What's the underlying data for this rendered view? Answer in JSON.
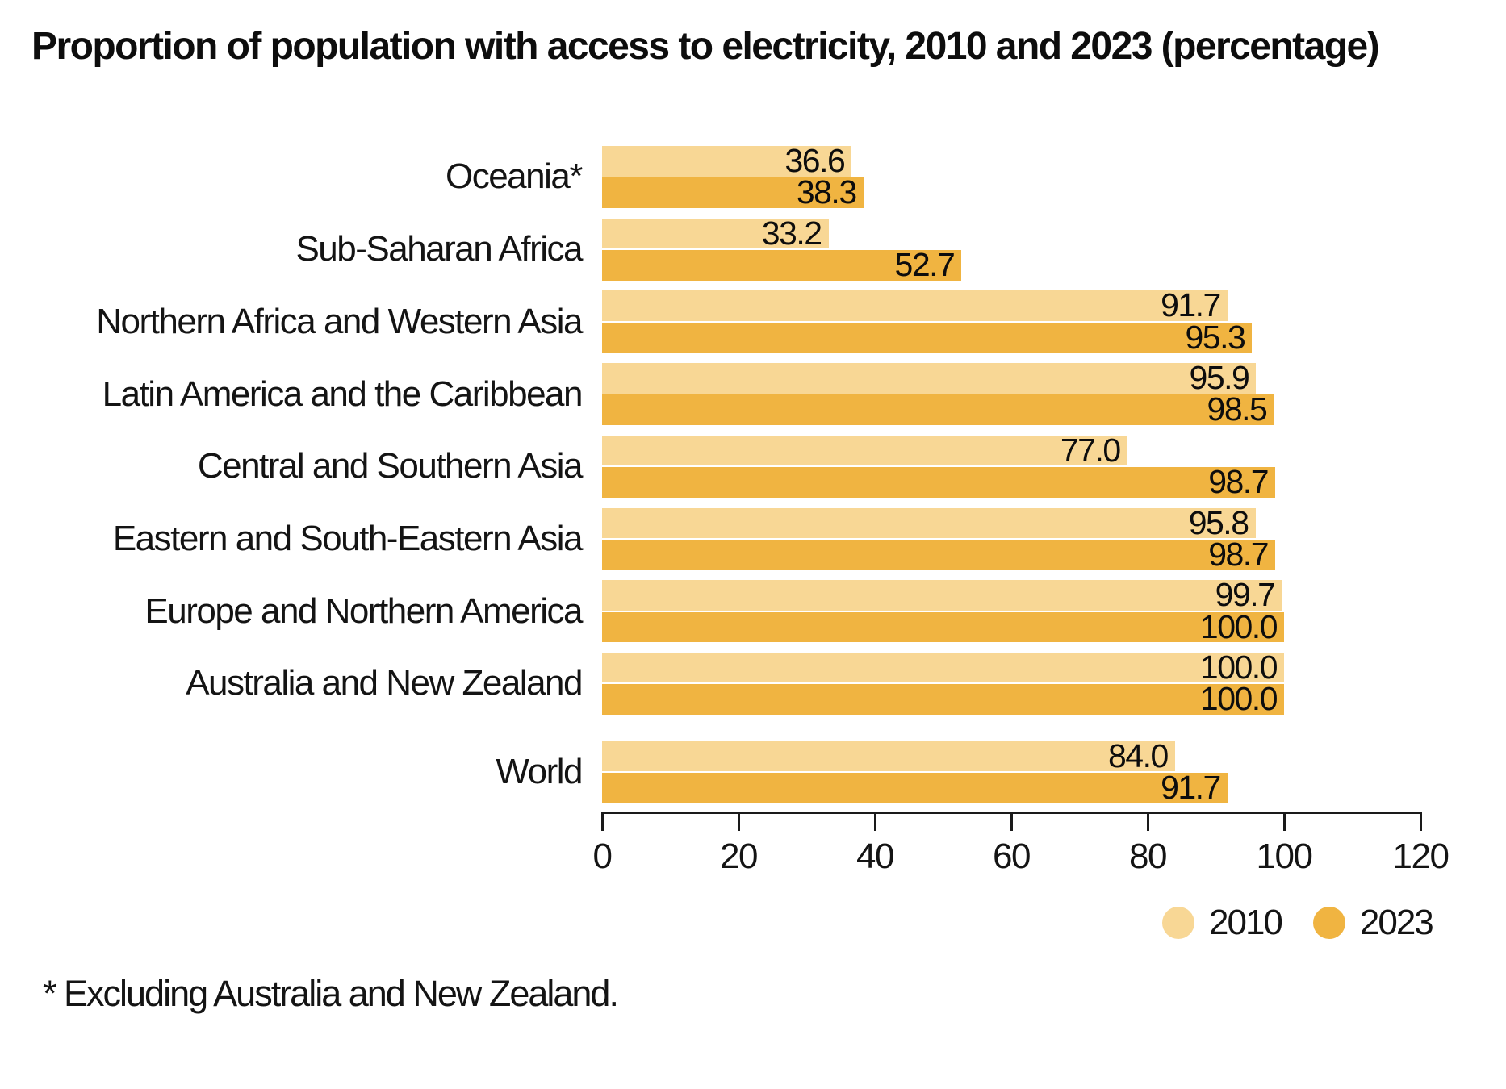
{
  "title": "Proportion of population with access to electricity, 2010 and 2023 (percentage)",
  "footnote": "* Excluding Australia and New Zealand.",
  "legend": {
    "items": [
      {
        "label": "2010",
        "color": "#F8D795"
      },
      {
        "label": "2023",
        "color": "#F0B441"
      }
    ]
  },
  "chart_data": {
    "type": "bar",
    "orientation": "horizontal",
    "title": "Proportion of population with access to electricity, 2010 and 2023 (percentage)",
    "categories": [
      "Oceania*",
      "Sub-Saharan Africa",
      "Northern Africa and Western Asia",
      "Latin America and the Caribbean",
      "Central and Southern Asia",
      "Eastern and South-Eastern Asia",
      "Europe and Northern America",
      "Australia and New Zealand",
      "World"
    ],
    "series": [
      {
        "name": "2010",
        "color": "#F8D795",
        "values": [
          36.6,
          33.2,
          91.7,
          95.9,
          77.0,
          95.8,
          99.7,
          100.0,
          84.0
        ]
      },
      {
        "name": "2023",
        "color": "#F0B441",
        "values": [
          38.3,
          52.7,
          95.3,
          98.5,
          98.7,
          98.7,
          100.0,
          100.0,
          91.7
        ]
      }
    ],
    "xlabel": "",
    "ylabel": "",
    "xlim": [
      0,
      120
    ],
    "xticks": [
      0,
      20,
      40,
      60,
      80,
      100,
      120
    ],
    "grid": false,
    "legend_position": "bottom-right",
    "annotations": "value labels shown at right end inside each bar, one decimal place"
  }
}
